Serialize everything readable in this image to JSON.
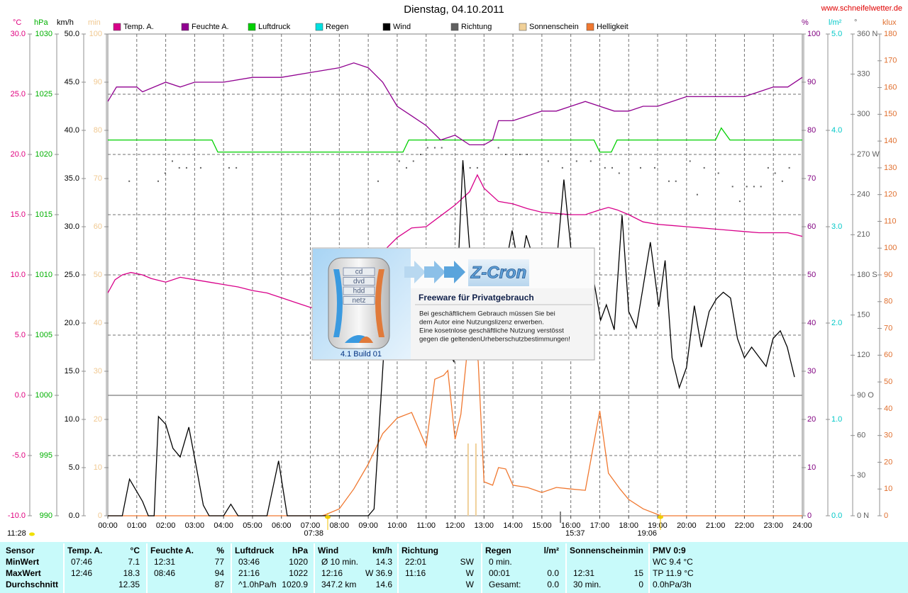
{
  "chart_data": {
    "type": "line",
    "title": "Dienstag, 04.10.2011",
    "source": "www.schneifelwetter.de",
    "grid": true,
    "xlim": [
      0,
      24
    ],
    "xticks": [
      {
        "value": 0,
        "label": "00:00"
      },
      {
        "value": 1,
        "label": "01:00"
      },
      {
        "value": 2,
        "label": "02:00"
      },
      {
        "value": 3,
        "label": "03:00"
      },
      {
        "value": 4,
        "label": "04:00"
      },
      {
        "value": 5,
        "label": "05:00"
      },
      {
        "value": 6,
        "label": "06:00"
      },
      {
        "value": 7,
        "label": "07:00"
      },
      {
        "value": 8,
        "label": "08:00"
      },
      {
        "value": 9,
        "label": "09:00"
      },
      {
        "value": 10,
        "label": "10:00"
      },
      {
        "value": 11,
        "label": "11:00"
      },
      {
        "value": 12,
        "label": "12:00"
      },
      {
        "value": 13,
        "label": "13:00"
      },
      {
        "value": 14,
        "label": "14:00"
      },
      {
        "value": 15,
        "label": "15:00"
      },
      {
        "value": 16,
        "label": "16:00"
      },
      {
        "value": 17,
        "label": "17:00"
      },
      {
        "value": 18,
        "label": "18:00"
      },
      {
        "value": 19,
        "label": "19:00"
      },
      {
        "value": 20,
        "label": "20:00"
      },
      {
        "value": 21,
        "label": "21:00"
      },
      {
        "value": 22,
        "label": "22:00"
      },
      {
        "value": 23,
        "label": "23:00"
      },
      {
        "value": 24,
        "label": "24:00"
      }
    ],
    "axes": [
      {
        "name": "°C",
        "color": "#e0007f",
        "lim": [
          -10,
          30
        ],
        "ticks": [
          {
            "value": -10,
            "label": "-10.0"
          },
          {
            "value": -5,
            "label": "-5.0"
          },
          {
            "value": 0,
            "label": "0.0"
          },
          {
            "value": 5,
            "label": "5.0"
          },
          {
            "value": 10,
            "label": "10.0"
          },
          {
            "value": 15,
            "label": "15.0"
          },
          {
            "value": 20,
            "label": "20.0"
          },
          {
            "value": 25,
            "label": "25.0"
          },
          {
            "value": 30,
            "label": "30.0"
          }
        ]
      },
      {
        "name": "hPa",
        "color": "#00b000",
        "lim": [
          990,
          1030
        ],
        "ticks": [
          990,
          995,
          1000,
          1005,
          1010,
          1015,
          1020,
          1025,
          1030
        ]
      },
      {
        "name": "km/h",
        "color": "#000000",
        "lim": [
          0,
          50
        ],
        "ticks": [
          {
            "value": 0,
            "label": "0.0"
          },
          {
            "value": 5,
            "label": "5.0"
          },
          {
            "value": 10,
            "label": "10.0"
          },
          {
            "value": 15,
            "label": "15.0"
          },
          {
            "value": 20,
            "label": "20.0"
          },
          {
            "value": 25,
            "label": "25.0"
          },
          {
            "value": 30,
            "label": "30.0"
          },
          {
            "value": 35,
            "label": "35.0"
          },
          {
            "value": 40,
            "label": "40.0"
          },
          {
            "value": 45,
            "label": "45.0"
          },
          {
            "value": 50,
            "label": "50.0"
          }
        ]
      },
      {
        "name": "min",
        "color": "#f0c890",
        "lim": [
          0,
          100
        ],
        "ticks": [
          0,
          10,
          20,
          30,
          40,
          50,
          60,
          70,
          80,
          90,
          100
        ]
      },
      {
        "name": "%",
        "color": "#800080",
        "lim": [
          0,
          100
        ],
        "ticks": [
          0,
          10,
          20,
          30,
          40,
          50,
          60,
          70,
          80,
          90,
          100
        ]
      },
      {
        "name": "l/m²",
        "color": "#00c8c8",
        "lim": [
          0,
          5
        ],
        "ticks": [
          {
            "value": 0,
            "label": "0.0"
          },
          {
            "value": 1,
            "label": "1.0"
          },
          {
            "value": 2,
            "label": "2.0"
          },
          {
            "value": 3,
            "label": "3.0"
          },
          {
            "value": 4,
            "label": "4.0"
          },
          {
            "value": 5,
            "label": "5.0"
          }
        ]
      },
      {
        "name": "°",
        "color": "#606060",
        "lim": [
          0,
          360
        ],
        "ticks": [
          {
            "value": 0,
            "label": "0   N"
          },
          30,
          60,
          {
            "value": 90,
            "label": "90   O"
          },
          120,
          150,
          {
            "value": 180,
            "label": "180 S"
          },
          210,
          240,
          {
            "value": 270,
            "label": "270 W"
          },
          300,
          330,
          {
            "value": 360,
            "label": "360 N"
          }
        ]
      },
      {
        "name": "klux",
        "color": "#e07030",
        "lim": [
          0,
          180
        ],
        "ticks": [
          0,
          10,
          20,
          30,
          40,
          50,
          60,
          70,
          80,
          90,
          100,
          110,
          120,
          130,
          140,
          150,
          160,
          170,
          180
        ]
      }
    ],
    "series": [
      {
        "name": "Temp. A.",
        "color": "#d8008a",
        "axis": 0,
        "style": "line",
        "x": [
          0,
          0.25,
          0.5,
          0.8,
          1.2,
          1.5,
          2,
          2.5,
          3,
          3.5,
          4,
          4.5,
          5,
          5.5,
          6,
          6.5,
          7,
          7.77,
          8.5,
          9.5,
          10,
          10.5,
          11,
          11.5,
          12,
          12.5,
          12.77,
          13,
          13.5,
          14,
          14.5,
          15,
          15.5,
          16,
          16.5,
          17,
          17.3,
          17.6,
          18,
          18.5,
          19,
          19.5,
          20,
          20.5,
          21,
          21.5,
          22,
          22.5,
          23,
          23.5,
          24
        ],
        "values": [
          8.5,
          9.6,
          10.0,
          10.2,
          10.0,
          9.7,
          9.4,
          9.8,
          9.6,
          9.4,
          9.2,
          9.0,
          8.7,
          8.5,
          8.1,
          7.7,
          7.3,
          7.1,
          8.5,
          11.9,
          13.1,
          13.9,
          14.0,
          14.9,
          15.8,
          16.9,
          18.3,
          17.2,
          16.1,
          15.9,
          15.5,
          15.2,
          15.1,
          15.0,
          15.0,
          15.4,
          15.6,
          15.4,
          15.0,
          14.4,
          14.2,
          14.1,
          14.0,
          13.9,
          13.8,
          13.7,
          13.6,
          13.5,
          13.5,
          13.5,
          13.2
        ]
      },
      {
        "name": "Feuchte A.",
        "color": "#900090",
        "axis": 4,
        "style": "line",
        "x": [
          0,
          0.3,
          1,
          1.2,
          2,
          2.5,
          3,
          4,
          5,
          6,
          7,
          8,
          8.5,
          9,
          9.5,
          10,
          10.5,
          11,
          11.5,
          12,
          12.5,
          13,
          13.3,
          13.5,
          14,
          14.5,
          15,
          15.5,
          16,
          16.5,
          17,
          17.5,
          18,
          18.5,
          19,
          19.5,
          20,
          21,
          22,
          22.5,
          23,
          23.5,
          24
        ],
        "values": [
          86,
          89,
          89,
          88,
          90,
          89,
          90,
          90,
          91,
          91,
          92,
          93,
          94,
          93,
          90,
          85,
          83,
          81,
          78,
          79,
          77,
          77,
          78,
          82,
          82,
          83,
          84,
          84,
          85,
          86,
          85,
          84,
          84,
          85,
          85,
          86,
          87,
          87,
          87,
          88,
          89,
          89,
          91
        ]
      },
      {
        "name": "Luftdruck",
        "color": "#00d000",
        "axis": 1,
        "style": "line",
        "x": [
          0,
          3.6,
          3.8,
          10.2,
          10.4,
          16.8,
          17,
          17.4,
          17.6,
          21,
          21.2,
          21.5,
          24
        ],
        "values": [
          1021.2,
          1021.2,
          1020.2,
          1020.2,
          1021.2,
          1021.2,
          1020.2,
          1020.2,
          1021.2,
          1021.2,
          1022.2,
          1021.2,
          1021.2
        ]
      },
      {
        "name": "Regen",
        "color": "#00e0e0",
        "axis": 5,
        "style": "line",
        "x": [],
        "values": []
      },
      {
        "name": "Wind",
        "color": "#000000",
        "axis": 2,
        "style": "line",
        "x": [
          0,
          0.5,
          0.75,
          1.2,
          1.4,
          1.6,
          1.75,
          2.0,
          2.25,
          2.5,
          2.8,
          3.0,
          3.3,
          3.5,
          4.0,
          4.25,
          4.5,
          5.5,
          5.9,
          6.2,
          9.0,
          9.2,
          9.6,
          10,
          10.5,
          11,
          11.5,
          11.96,
          12.27,
          12.5,
          13,
          13.5,
          13.97,
          14.25,
          14.46,
          15,
          15.5,
          15.76,
          16,
          16.3,
          16.8,
          17.03,
          17.23,
          17.5,
          17.77,
          18.0,
          18.26,
          18.48,
          18.75,
          19.04,
          19.26,
          19.5,
          19.75,
          20.0,
          20.27,
          20.51,
          20.78,
          21.03,
          21.27,
          21.52,
          21.76,
          22.0,
          22.25,
          22.5,
          22.75,
          22.99,
          23.24,
          23.48,
          23.73
        ],
        "values": [
          0,
          0,
          3.8,
          1.5,
          0,
          0,
          10.3,
          9.5,
          7.0,
          6.1,
          9.2,
          6,
          1.1,
          0,
          0,
          1.2,
          0,
          0,
          5.7,
          0,
          0,
          0.7,
          20,
          22,
          20,
          24,
          18,
          16,
          36.9,
          27.8,
          25,
          22,
          29.6,
          25,
          29.1,
          24,
          26,
          34.9,
          27.8,
          24,
          24.3,
          20.3,
          21.9,
          19.3,
          31.2,
          21.2,
          19.5,
          23.4,
          28.4,
          21.7,
          26.5,
          16.4,
          13.3,
          15.4,
          21.8,
          17.5,
          21.2,
          22.5,
          23.2,
          22.6,
          18.4,
          16.4,
          17.5,
          16.5,
          15.5,
          18.4,
          19.2,
          17.5,
          14.4
        ]
      },
      {
        "name": "Richtung",
        "color": "#606060",
        "axis": 6,
        "style": "dots",
        "x": [
          0.74,
          1.74,
          1.98,
          2.23,
          2.47,
          2.72,
          3.21,
          4.19,
          4.44,
          9.34,
          10.07,
          10.32,
          10.56,
          10.81,
          11.05,
          11.3,
          11.54,
          12.28,
          12.52,
          12.77,
          13.5,
          13.75,
          14.24,
          14.49,
          15.22,
          15.71,
          16.2,
          16.69,
          17.18,
          17.43,
          17.67,
          18.41,
          18.9,
          19.39,
          19.63,
          20.12,
          20.37,
          20.61,
          21.1,
          21.59,
          21.84,
          22.08,
          22.33,
          22.57,
          22.82,
          23.06,
          23.31,
          23.55
        ],
        "values": [
          250,
          250,
          256,
          265,
          260,
          260,
          260,
          260,
          260,
          250,
          265,
          260,
          265,
          270,
          275,
          275,
          275,
          260,
          260,
          260,
          275,
          270,
          270,
          270,
          265,
          260,
          265,
          265,
          260,
          260,
          256,
          260,
          260,
          250,
          250,
          265,
          240,
          260,
          256,
          246,
          235,
          246,
          246,
          246,
          260,
          256,
          250,
          260
        ]
      },
      {
        "name": "Sonnenschein",
        "color": "#f0d098",
        "axis": 3,
        "style": "bars",
        "x": [
          12.45,
          12.72
        ],
        "values": [
          15,
          15
        ]
      },
      {
        "name": "Helligkeit",
        "color": "#f07830",
        "axis": 7,
        "style": "line",
        "x": [
          0,
          7.4,
          7.5,
          8,
          8.5,
          9,
          9.5,
          10,
          10.5,
          11,
          11.3,
          11.6,
          11.75,
          12,
          12.2,
          12.5,
          12.8,
          13,
          13.3,
          13.5,
          13.75,
          14,
          14.5,
          15,
          15.5,
          16,
          16.5,
          17,
          17.3,
          17.7,
          18,
          18.5,
          19,
          19.1,
          24
        ],
        "values": [
          0,
          0,
          0.3,
          2.6,
          10,
          19.3,
          30.7,
          36.5,
          38.6,
          26,
          51,
          52.4,
          54.3,
          28.6,
          37.9,
          70,
          57.7,
          12.7,
          11.4,
          18,
          17.5,
          11.4,
          10.6,
          8.7,
          10.6,
          10,
          9.5,
          39.2,
          15.9,
          10,
          6.1,
          2.6,
          0.5,
          0,
          0
        ]
      }
    ],
    "annotations": [
      "11:28",
      "07:38",
      "15:37",
      "19:06"
    ]
  },
  "popup": {
    "logo": "Z-Cron",
    "title": "Freeware für Privatgebrauch",
    "lines": [
      "Bei geschäftlichem Gebrauch müssen Sie bei",
      "dem Autor eine Nutzungslizenz erwerben.",
      "Eine kosetnlose geschäftliche Nutzung verstösst",
      "gegen die geltendenUrheberschutzbestimmungen!"
    ],
    "version": "4.1 Build 01",
    "icon_labels": [
      "cd",
      "dvd",
      "hdd",
      "netz"
    ]
  },
  "table": {
    "headers": [
      {
        "name": "Sensor"
      },
      {
        "name": "Temp. A.",
        "unit": "°C"
      },
      {
        "name": "Feuchte A.",
        "unit": "%"
      },
      {
        "name": "Luftdruck",
        "unit": "hPa"
      },
      {
        "name": "Wind",
        "unit": "km/h"
      },
      {
        "name": "Richtung"
      },
      {
        "name": "Regen",
        "unit": "l/m²"
      },
      {
        "name": "Sonnenschein",
        "unit": "min"
      },
      {
        "name": "PMV 0:9"
      }
    ],
    "row_labels": [
      "MinWert",
      "MaxWert",
      "Durchschnitt"
    ],
    "rows": [
      [
        {
          "left": "07:46",
          "right": "7.1"
        },
        {
          "left": "12:31",
          "right": "77"
        },
        {
          "left": "03:46",
          "right": "1020"
        },
        {
          "left": "Ø 10 min.",
          "right": "14.3"
        },
        {
          "left": "22:01",
          "right": "SW"
        },
        {
          "left": "0 min."
        },
        {},
        {
          "left": "WC 9.4 °C"
        }
      ],
      [
        {
          "left": "12:46",
          "right": "18.3"
        },
        {
          "left": "08:46",
          "right": "94"
        },
        {
          "left": "21:16",
          "right": "1022"
        },
        {
          "left": "12:16",
          "right": "W 36.9"
        },
        {
          "left": "11:16",
          "right": "W"
        },
        {
          "left": "00:01",
          "right": "0.0"
        },
        {
          "left": "12:31",
          "right": "15"
        },
        {
          "left": "TP 11.9 °C"
        }
      ],
      [
        {
          "right": "12.35"
        },
        {
          "right": "87"
        },
        {
          "left": "^1.0hPa/h",
          "right": "1020.9"
        },
        {
          "left": "347.2 km",
          "right": "14.6"
        },
        {
          "right": "W"
        },
        {
          "left": "Gesamt:",
          "right": "0.0"
        },
        {
          "left": "30 min.",
          "right": "0"
        },
        {
          "left": "0.0hPa/3h"
        }
      ]
    ]
  }
}
